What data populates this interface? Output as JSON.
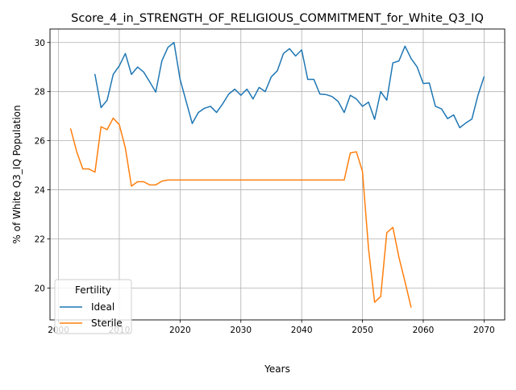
{
  "chart_data": {
    "type": "line",
    "title": "Score_4_in_STRENGTH_OF_RELIGIOUS_COMMITMENT_for_White_Q3_IQ",
    "xlabel": "Years",
    "ylabel": "% of White Q3_IQ Population",
    "xlim": [
      1998.6,
      2073.4
    ],
    "ylim": [
      18.7,
      30.55
    ],
    "x_ticks": [
      2000,
      2010,
      2020,
      2030,
      2040,
      2050,
      2060,
      2070
    ],
    "y_ticks": [
      20,
      22,
      24,
      26,
      28,
      30
    ],
    "grid": true,
    "legend": {
      "title": "Fertility",
      "placement": "lower-left"
    },
    "series": [
      {
        "name": "Ideal",
        "color": "#1f77b4",
        "x": [
          2006,
          2007,
          2008,
          2009,
          2010,
          2011,
          2012,
          2013,
          2014,
          2015,
          2016,
          2017,
          2018,
          2019,
          2020,
          2021,
          2022,
          2023,
          2024,
          2025,
          2026,
          2027,
          2028,
          2029,
          2030,
          2031,
          2032,
          2033,
          2034,
          2035,
          2036,
          2037,
          2038,
          2039,
          2040,
          2041,
          2042,
          2043,
          2044,
          2045,
          2046,
          2047,
          2048,
          2049,
          2050,
          2051,
          2052,
          2053,
          2054,
          2055,
          2056,
          2057,
          2058,
          2059,
          2060,
          2061,
          2062,
          2063,
          2064,
          2065,
          2066,
          2067,
          2068,
          2069,
          2070
        ],
        "values": [
          28.7,
          27.35,
          27.65,
          28.7,
          29.05,
          29.55,
          28.7,
          29.0,
          28.8,
          28.4,
          27.98,
          29.25,
          29.8,
          30.0,
          28.5,
          27.6,
          26.7,
          27.15,
          27.32,
          27.4,
          27.15,
          27.5,
          27.9,
          28.1,
          27.85,
          28.1,
          27.7,
          28.17,
          28.0,
          28.6,
          28.85,
          29.55,
          29.75,
          29.45,
          29.7,
          28.5,
          28.5,
          27.9,
          27.88,
          27.8,
          27.6,
          27.15,
          27.85,
          27.7,
          27.4,
          27.57,
          26.87,
          28.0,
          27.65,
          29.17,
          29.25,
          29.85,
          29.35,
          29.0,
          28.33,
          28.35,
          27.4,
          27.3,
          26.9,
          27.05,
          26.53,
          26.72,
          26.88,
          27.85,
          28.6
        ]
      },
      {
        "name": "Sterile",
        "color": "#ff7f0e",
        "x": [
          2002,
          2003,
          2004,
          2005,
          2006,
          2007,
          2008,
          2009,
          2010,
          2011,
          2012,
          2013,
          2014,
          2015,
          2016,
          2017,
          2018,
          2019,
          2020,
          2021,
          2022,
          2023,
          2024,
          2025,
          2026,
          2027,
          2028,
          2029,
          2030,
          2031,
          2032,
          2033,
          2034,
          2035,
          2036,
          2037,
          2038,
          2039,
          2040,
          2041,
          2042,
          2043,
          2044,
          2045,
          2046,
          2047,
          2048,
          2049,
          2050,
          2051,
          2052,
          2053,
          2054,
          2055,
          2056,
          2057,
          2058
        ],
        "values": [
          26.48,
          25.55,
          24.85,
          24.85,
          24.72,
          26.57,
          26.45,
          26.92,
          26.65,
          25.7,
          24.15,
          24.33,
          24.33,
          24.2,
          24.2,
          24.35,
          24.4,
          24.4,
          24.4,
          24.4,
          24.4,
          24.4,
          24.4,
          24.4,
          24.4,
          24.4,
          24.4,
          24.4,
          24.4,
          24.4,
          24.4,
          24.4,
          24.4,
          24.4,
          24.4,
          24.4,
          24.4,
          24.4,
          24.4,
          24.4,
          24.4,
          24.4,
          24.4,
          24.4,
          24.4,
          24.4,
          25.5,
          25.55,
          24.75,
          21.6,
          19.42,
          19.65,
          22.25,
          22.47,
          21.25,
          20.25,
          19.22
        ]
      }
    ]
  }
}
